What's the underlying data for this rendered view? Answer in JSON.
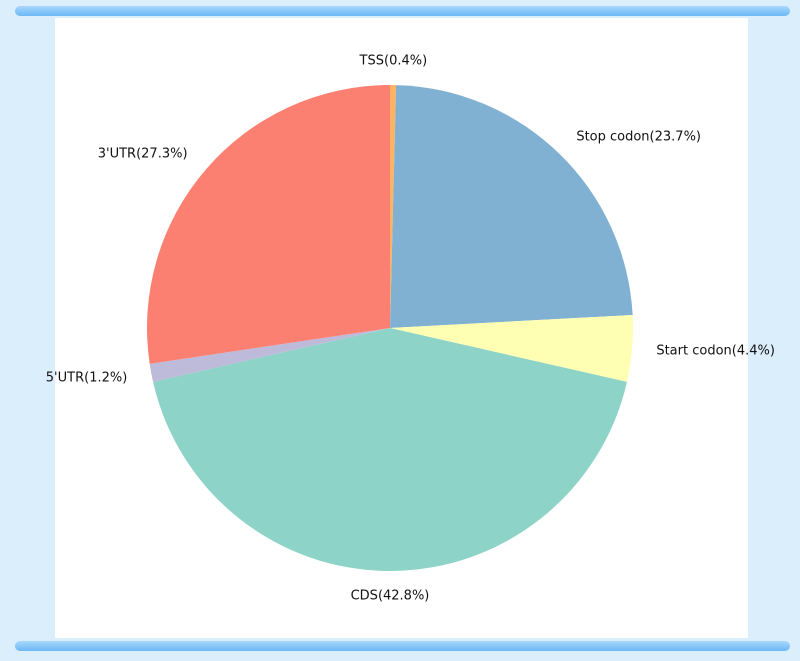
{
  "chart_data": {
    "type": "pie",
    "categories": [
      "TSS",
      "Stop codon",
      "Start codon",
      "CDS",
      "5'UTR",
      "3'UTR"
    ],
    "values": [
      0.4,
      23.7,
      4.4,
      42.8,
      1.2,
      27.3
    ],
    "value_labels": [
      "(0.4%)",
      "(23.7%)",
      "(4.4%)",
      "(42.8%)",
      "(1.2%)",
      "(27.3%)"
    ],
    "colors": [
      "#fdb462",
      "#80b1d3",
      "#ffffb3",
      "#8dd3c7",
      "#bebada",
      "#fb8072"
    ]
  }
}
